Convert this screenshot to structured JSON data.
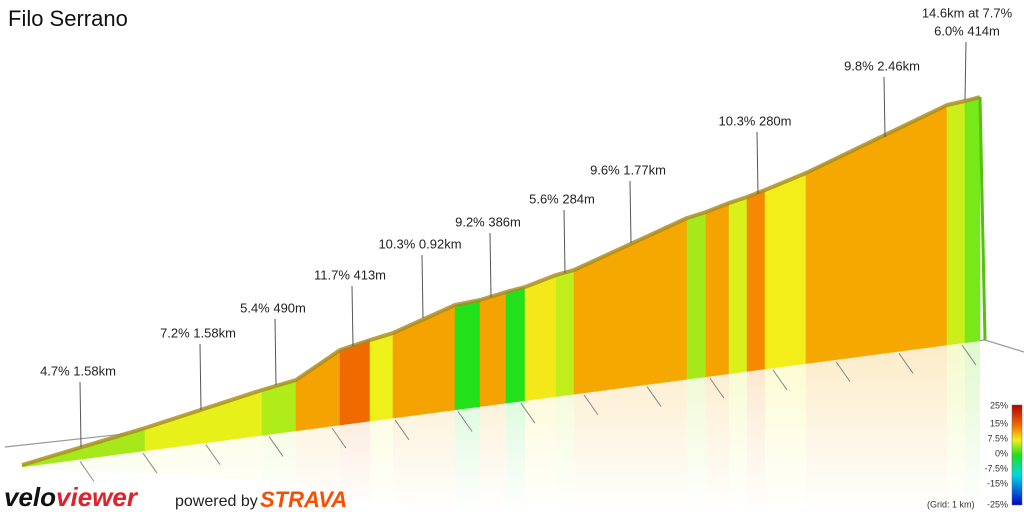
{
  "title": "Filo Serrano",
  "annotations": [
    {
      "text": "4.7% 1.58km"
    },
    {
      "text": "7.2% 1.58km"
    },
    {
      "text": "5.4% 490m"
    },
    {
      "text": "11.7% 413m"
    },
    {
      "text": "10.3% 0.92km"
    },
    {
      "text": "9.2% 386m"
    },
    {
      "text": "5.6% 284m"
    },
    {
      "text": "9.6% 1.77km"
    },
    {
      "text": "10.3% 280m"
    },
    {
      "text": "9.8% 2.46km"
    },
    {
      "text": "6.0% 414m"
    }
  ],
  "summary": "14.6km at 7.7%",
  "legend": {
    "ticks": [
      "25%",
      "15%",
      "7.5%",
      "0%",
      "-7.5%",
      "-15%",
      "-25%"
    ],
    "grid_note": "(Grid: 1 km)"
  },
  "footer": {
    "logo_a": "velo",
    "logo_b": "viewer",
    "powered": "powered by",
    "strava": "STRAVA"
  }
}
